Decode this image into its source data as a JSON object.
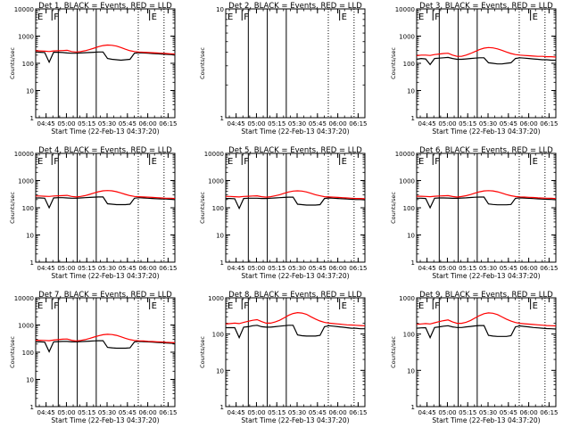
{
  "chart_data": [
    {
      "type": "line",
      "title": "Det 1, BLACK = Events, RED = LLD",
      "xlabel": "Start Time (22-Feb-13 04:37:20)",
      "ylabel": "Counts/sec",
      "yscale": "log",
      "ylim": [
        1,
        10000
      ],
      "x_ticks": [
        "04:45",
        "05:00",
        "05:15",
        "05:30",
        "05:45",
        "06:00",
        "06:15"
      ],
      "y_ticks": [
        "1",
        "10",
        "100",
        "1000",
        "10000"
      ],
      "grid": false,
      "series": [
        {
          "name": "Events",
          "color": "#000000",
          "values": [
            260,
            255,
            250,
            110,
            255,
            255,
            250,
            240,
            235,
            235,
            240,
            245,
            250,
            255,
            260,
            260,
            150,
            140,
            135,
            130,
            135,
            140,
            235,
            245,
            240,
            235,
            230,
            225,
            220,
            215,
            210,
            205
          ]
        },
        {
          "name": "LLD",
          "color": "#ff0000",
          "values": [
            290,
            285,
            280,
            270,
            285,
            290,
            295,
            300,
            270,
            260,
            270,
            290,
            320,
            360,
            410,
            450,
            470,
            460,
            430,
            380,
            330,
            290,
            270,
            260,
            255,
            250,
            245,
            240,
            235,
            230,
            225,
            220
          ]
        }
      ],
      "panel_markers": [
        {
          "label": "E",
          "x": "04:38"
        },
        {
          "label": "F",
          "x": "04:50"
        },
        {
          "label": "E",
          "x": "06:02"
        }
      ]
    },
    {
      "type": "line",
      "title": "Det 2, BLACK = Events, RED = LLD",
      "xlabel": "Start Time (22-Feb-13 04:37:20)",
      "ylabel": "Counts/sec",
      "yscale": "log",
      "ylim": [
        1,
        10
      ],
      "x_ticks": [
        "04:45",
        "05:00",
        "05:15",
        "05:30",
        "05:45",
        "06:00",
        "06:15"
      ],
      "y_ticks": [
        "1",
        "10"
      ],
      "grid": false,
      "series": [],
      "panel_markers": [
        {
          "label": "E",
          "x": "04:38"
        },
        {
          "label": "F",
          "x": "04:50"
        },
        {
          "label": "E",
          "x": "06:02"
        }
      ]
    },
    {
      "type": "line",
      "title": "Det 3, BLACK = Events, RED = LLD",
      "xlabel": "Start Time (22-Feb-13 04:37:20)",
      "ylabel": "Counts/sec",
      "yscale": "log",
      "ylim": [
        1,
        10000
      ],
      "x_ticks": [
        "04:45",
        "05:00",
        "05:15",
        "05:30",
        "05:45",
        "06:00",
        "06:15"
      ],
      "y_ticks": [
        "1",
        "10",
        "100",
        "1000",
        "10000"
      ],
      "grid": false,
      "series": [
        {
          "name": "Events",
          "color": "#000000",
          "values": [
            140,
            150,
            145,
            90,
            150,
            155,
            160,
            165,
            150,
            140,
            140,
            145,
            150,
            155,
            160,
            160,
            105,
            100,
            95,
            95,
            100,
            105,
            150,
            160,
            155,
            150,
            145,
            140,
            135,
            135,
            130,
            130
          ]
        },
        {
          "name": "LLD",
          "color": "#ff0000",
          "values": [
            190,
            200,
            200,
            195,
            210,
            220,
            230,
            235,
            200,
            180,
            180,
            200,
            230,
            270,
            320,
            360,
            380,
            370,
            340,
            300,
            260,
            230,
            210,
            200,
            195,
            190,
            185,
            180,
            180,
            175,
            175,
            170
          ]
        }
      ],
      "panel_markers": [
        {
          "label": "E",
          "x": "04:38"
        },
        {
          "label": "F",
          "x": "04:50"
        },
        {
          "label": "E",
          "x": "06:02"
        }
      ]
    },
    {
      "type": "line",
      "title": "Det 4, BLACK = Events, RED = LLD",
      "xlabel": "Start Time (22-Feb-13 04:37:20)",
      "ylabel": "Counts/sec",
      "yscale": "log",
      "ylim": [
        1,
        10000
      ],
      "x_ticks": [
        "04:45",
        "05:00",
        "05:15",
        "05:30",
        "05:45",
        "06:00",
        "06:15"
      ],
      "y_ticks": [
        "1",
        "10",
        "100",
        "1000",
        "10000"
      ],
      "grid": false,
      "series": [
        {
          "name": "Events",
          "color": "#000000",
          "values": [
            230,
            230,
            225,
            100,
            230,
            235,
            235,
            230,
            225,
            225,
            230,
            235,
            240,
            245,
            250,
            250,
            140,
            135,
            130,
            130,
            130,
            135,
            225,
            235,
            230,
            225,
            220,
            215,
            210,
            210,
            205,
            200
          ]
        },
        {
          "name": "LLD",
          "color": "#ff0000",
          "values": [
            270,
            270,
            265,
            260,
            270,
            275,
            280,
            285,
            260,
            250,
            260,
            280,
            310,
            350,
            390,
            420,
            430,
            420,
            390,
            350,
            310,
            280,
            260,
            255,
            250,
            245,
            240,
            235,
            230,
            225,
            225,
            220
          ]
        }
      ],
      "panel_markers": [
        {
          "label": "E",
          "x": "04:38"
        },
        {
          "label": "F",
          "x": "04:50"
        },
        {
          "label": "E",
          "x": "06:02"
        }
      ]
    },
    {
      "type": "line",
      "title": "Det 5, BLACK = Events, RED = LLD",
      "xlabel": "Start Time (22-Feb-13 04:37:20)",
      "ylabel": "Counts/sec",
      "yscale": "log",
      "ylim": [
        1,
        10000
      ],
      "x_ticks": [
        "04:45",
        "05:00",
        "05:15",
        "05:30",
        "05:45",
        "06:00",
        "06:15"
      ],
      "y_ticks": [
        "1",
        "10",
        "100",
        "1000",
        "10000"
      ],
      "grid": false,
      "series": [
        {
          "name": "Events",
          "color": "#000000",
          "values": [
            220,
            220,
            215,
            95,
            220,
            225,
            225,
            225,
            220,
            220,
            225,
            230,
            235,
            240,
            245,
            245,
            135,
            130,
            125,
            125,
            125,
            130,
            220,
            230,
            225,
            220,
            215,
            210,
            205,
            200,
            200,
            195
          ]
        },
        {
          "name": "LLD",
          "color": "#ff0000",
          "values": [
            260,
            260,
            255,
            250,
            260,
            265,
            270,
            275,
            255,
            245,
            255,
            275,
            300,
            340,
            380,
            410,
            420,
            410,
            380,
            340,
            300,
            275,
            255,
            250,
            245,
            240,
            235,
            230,
            225,
            220,
            220,
            215
          ]
        }
      ],
      "panel_markers": [
        {
          "label": "E",
          "x": "04:38"
        },
        {
          "label": "F",
          "x": "04:50"
        },
        {
          "label": "E",
          "x": "06:02"
        }
      ]
    },
    {
      "type": "line",
      "title": "Det 6, BLACK = Events, RED = LLD",
      "xlabel": "Start Time (22-Feb-13 04:37:20)",
      "ylabel": "Counts/sec",
      "yscale": "log",
      "ylim": [
        1,
        10000
      ],
      "x_ticks": [
        "04:45",
        "05:00",
        "05:15",
        "05:30",
        "05:45",
        "06:00",
        "06:15"
      ],
      "y_ticks": [
        "1",
        "10",
        "100",
        "1000",
        "10000"
      ],
      "grid": false,
      "series": [
        {
          "name": "Events",
          "color": "#000000",
          "values": [
            225,
            225,
            220,
            100,
            225,
            230,
            230,
            228,
            222,
            222,
            228,
            232,
            238,
            244,
            248,
            248,
            138,
            132,
            128,
            128,
            128,
            132,
            222,
            232,
            228,
            222,
            218,
            212,
            208,
            205,
            202,
            198
          ]
        },
        {
          "name": "LLD",
          "color": "#ff0000",
          "values": [
            265,
            265,
            260,
            255,
            265,
            270,
            275,
            280,
            258,
            248,
            258,
            278,
            305,
            345,
            385,
            415,
            425,
            415,
            385,
            345,
            305,
            278,
            258,
            252,
            248,
            242,
            238,
            232,
            228,
            224,
            222,
            218
          ]
        }
      ],
      "panel_markers": [
        {
          "label": "E",
          "x": "04:38"
        },
        {
          "label": "F",
          "x": "04:50"
        },
        {
          "label": "E",
          "x": "06:02"
        }
      ]
    },
    {
      "type": "line",
      "title": "Det 7, BLACK = Events, RED = LLD",
      "xlabel": "Start Time (22-Feb-13 04:37:20)",
      "ylabel": "Counts/sec",
      "yscale": "log",
      "ylim": [
        1,
        10000
      ],
      "x_ticks": [
        "04:45",
        "05:00",
        "05:15",
        "05:30",
        "05:45",
        "06:00",
        "06:15"
      ],
      "y_ticks": [
        "1",
        "10",
        "100",
        "1000",
        "10000"
      ],
      "grid": false,
      "series": [
        {
          "name": "Events",
          "color": "#000000",
          "values": [
            240,
            240,
            235,
            105,
            240,
            245,
            250,
            250,
            240,
            240,
            245,
            250,
            255,
            260,
            265,
            265,
            150,
            145,
            140,
            140,
            140,
            145,
            240,
            250,
            245,
            240,
            235,
            230,
            225,
            220,
            215,
            210
          ]
        },
        {
          "name": "LLD",
          "color": "#ff0000",
          "values": [
            275,
            275,
            270,
            265,
            280,
            290,
            300,
            305,
            275,
            260,
            270,
            290,
            320,
            360,
            400,
            440,
            455,
            445,
            415,
            370,
            325,
            290,
            270,
            262,
            258,
            252,
            248,
            242,
            238,
            232,
            228,
            222
          ]
        }
      ],
      "panel_markers": [
        {
          "label": "E",
          "x": "04:38"
        },
        {
          "label": "F",
          "x": "04:50"
        },
        {
          "label": "E",
          "x": "06:02"
        }
      ]
    },
    {
      "type": "line",
      "title": "Det 8, BLACK = Events, RED = LLD",
      "xlabel": "Start Time (22-Feb-13 04:37:20)",
      "ylabel": "Counts/sec",
      "yscale": "log",
      "ylim": [
        1,
        1000
      ],
      "x_ticks": [
        "04:45",
        "05:00",
        "05:15",
        "05:30",
        "05:45",
        "06:00",
        "06:15"
      ],
      "y_ticks": [
        "1",
        "10",
        "100",
        "1000"
      ],
      "grid": false,
      "series": [
        {
          "name": "Events",
          "color": "#000000",
          "values": [
            150,
            150,
            150,
            80,
            155,
            160,
            170,
            175,
            160,
            155,
            155,
            160,
            165,
            170,
            175,
            175,
            95,
            90,
            88,
            88,
            88,
            92,
            160,
            170,
            165,
            160,
            155,
            150,
            145,
            145,
            140,
            140
          ]
        },
        {
          "name": "LLD",
          "color": "#ff0000",
          "values": [
            190,
            195,
            200,
            195,
            210,
            225,
            240,
            250,
            220,
            200,
            200,
            215,
            240,
            280,
            330,
            370,
            390,
            380,
            350,
            300,
            260,
            230,
            210,
            200,
            195,
            190,
            185,
            180,
            178,
            175,
            172,
            170
          ]
        }
      ],
      "panel_markers": [
        {
          "label": "E",
          "x": "04:38"
        },
        {
          "label": "F",
          "x": "04:50"
        },
        {
          "label": "E",
          "x": "06:02"
        }
      ]
    },
    {
      "type": "line",
      "title": "Det 9, BLACK = Events, RED = LLD",
      "xlabel": "Start Time (22-Feb-13 04:37:20)",
      "ylabel": "Counts/sec",
      "yscale": "log",
      "ylim": [
        1,
        1000
      ],
      "x_ticks": [
        "04:45",
        "05:00",
        "05:15",
        "05:30",
        "05:45",
        "06:00",
        "06:15"
      ],
      "y_ticks": [
        "1",
        "10",
        "100",
        "1000"
      ],
      "grid": false,
      "series": [
        {
          "name": "Events",
          "color": "#000000",
          "values": [
            145,
            148,
            150,
            80,
            152,
            158,
            165,
            170,
            158,
            152,
            152,
            158,
            162,
            168,
            172,
            172,
            92,
            88,
            86,
            86,
            86,
            90,
            158,
            168,
            162,
            158,
            152,
            148,
            145,
            142,
            140,
            138
          ]
        },
        {
          "name": "LLD",
          "color": "#ff0000",
          "values": [
            185,
            190,
            195,
            190,
            205,
            220,
            235,
            245,
            215,
            198,
            198,
            212,
            238,
            278,
            325,
            365,
            385,
            375,
            345,
            298,
            258,
            228,
            208,
            198,
            192,
            188,
            184,
            180,
            176,
            172,
            170,
            168
          ]
        }
      ],
      "panel_markers": [
        {
          "label": "E",
          "x": "04:38"
        },
        {
          "label": "F",
          "x": "04:50"
        },
        {
          "label": "E",
          "x": "06:02"
        }
      ]
    }
  ]
}
